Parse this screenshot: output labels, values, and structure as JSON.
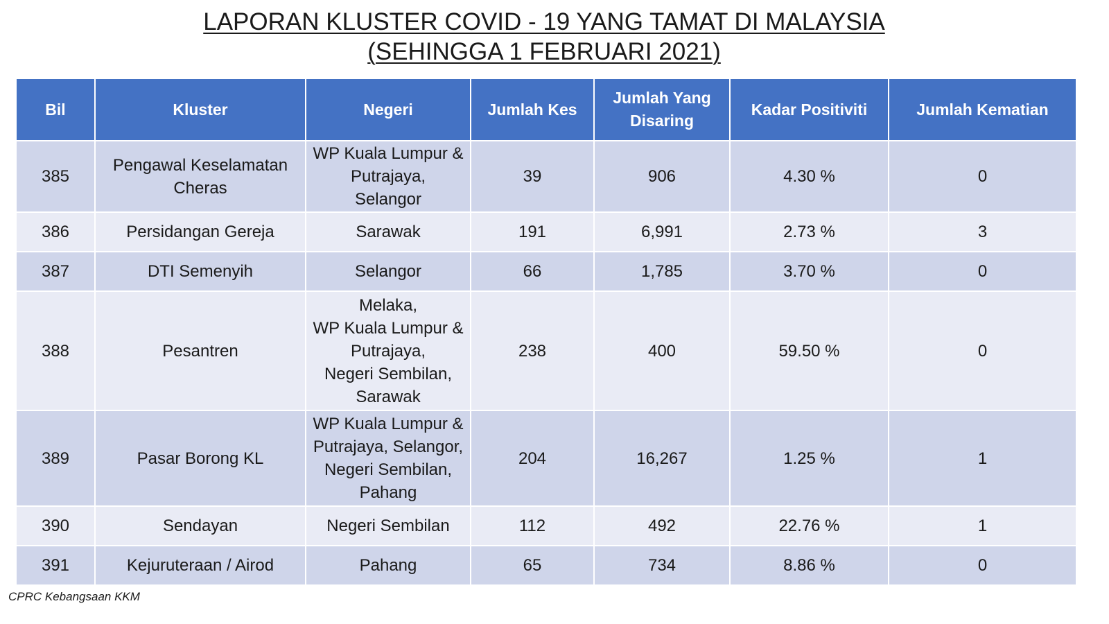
{
  "title": {
    "line1": "LAPORAN KLUSTER COVID - 19 YANG TAMAT DI MALAYSIA",
    "line2": "(SEHINGGA 1 FEBRUARI 2021)"
  },
  "table": {
    "headers": {
      "bil": "Bil",
      "kluster": "Kluster",
      "negeri": "Negeri",
      "jumlah_kes": "Jumlah Kes",
      "jumlah_disaring": "Jumlah Yang Disaring",
      "kadar_positiviti": "Kadar Positiviti",
      "jumlah_kematian": "Jumlah Kematian"
    },
    "rows": [
      {
        "bil": "385",
        "kluster": "Pengawal Keselamatan\nCheras",
        "negeri": "WP Kuala Lumpur &\nPutrajaya,\nSelangor",
        "kes": "39",
        "disaring": "906",
        "positiviti": "4.30 %",
        "kematian": "0"
      },
      {
        "bil": "386",
        "kluster": "Persidangan Gereja",
        "negeri": "Sarawak",
        "kes": "191",
        "disaring": "6,991",
        "positiviti": "2.73 %",
        "kematian": "3"
      },
      {
        "bil": "387",
        "kluster": "DTI Semenyih",
        "negeri": "Selangor",
        "kes": "66",
        "disaring": "1,785",
        "positiviti": "3.70 %",
        "kematian": "0"
      },
      {
        "bil": "388",
        "kluster": "Pesantren",
        "negeri": "Melaka,\nWP Kuala Lumpur &\nPutrajaya,\nNegeri Sembilan,\nSarawak",
        "kes": "238",
        "disaring": "400",
        "positiviti": "59.50 %",
        "kematian": "0"
      },
      {
        "bil": "389",
        "kluster": "Pasar Borong KL",
        "negeri": "WP Kuala Lumpur &\nPutrajaya,  Selangor,\nNegeri Sembilan,\nPahang",
        "kes": "204",
        "disaring": "16,267",
        "positiviti": "1.25 %",
        "kematian": "1"
      },
      {
        "bil": "390",
        "kluster": "Sendayan",
        "negeri": "Negeri Sembilan",
        "kes": "112",
        "disaring": "492",
        "positiviti": "22.76 %",
        "kematian": "1"
      },
      {
        "bil": "391",
        "kluster": "Kejuruteraan / Airod",
        "negeri": "Pahang",
        "kes": "65",
        "disaring": "734",
        "positiviti": "8.86 %",
        "kematian": "0"
      }
    ]
  },
  "footer": "CPRC Kebangsaan KKM",
  "colors": {
    "header_bg": "#4472c4",
    "row_dark": "#cfd5ea",
    "row_light": "#e9ebf5"
  }
}
